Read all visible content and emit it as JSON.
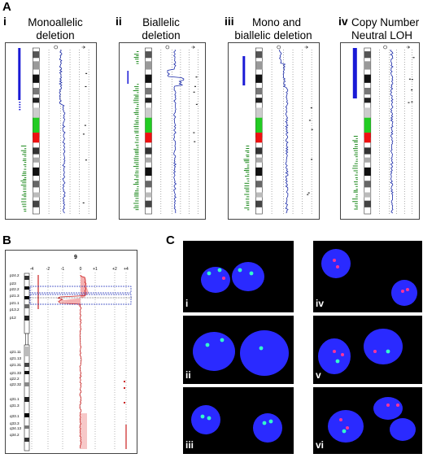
{
  "figure": {
    "panel_a": {
      "letter": "A",
      "subpanels": [
        {
          "num": "i",
          "title_lines": [
            "Monoallelic",
            "deletion"
          ]
        },
        {
          "num": "ii",
          "title_lines": [
            "Biallelic",
            "deletion"
          ]
        },
        {
          "num": "iii",
          "title_lines": [
            "Mono and",
            "biallelic deletion"
          ]
        },
        {
          "num": "iv",
          "title_lines": [
            "Copy Number",
            "Neutral LOH"
          ]
        }
      ]
    },
    "panel_b": {
      "letter": "B",
      "chromosome": "9",
      "axis_ticks": [
        "-4",
        "-2",
        "-1",
        "0",
        "+1",
        "+2",
        "+4"
      ],
      "bands": [
        "p24.2",
        "p23",
        "p22.2",
        "p21.3",
        "p21.1",
        "p13.2",
        "p12",
        "q21.11",
        "q21.13",
        "q21.31",
        "q21.33",
        "q22.2",
        "q22.32",
        "q31.1",
        "q31.3",
        "q33.1",
        "q33.3",
        "q34.13",
        "q34.2"
      ]
    },
    "panel_c": {
      "letter": "C",
      "images": [
        {
          "label": "i"
        },
        {
          "label": "iv"
        },
        {
          "label": "ii"
        },
        {
          "label": "v"
        },
        {
          "label": "iii"
        },
        {
          "label": "vi"
        }
      ]
    },
    "colors": {
      "blue_track": "#1a1ad6",
      "green_track": "#1e8a1e",
      "centromere_green": "#22cc22",
      "centromere_red": "#ee1111",
      "trace_blue": "#1a2aa8",
      "trace_red": "#cc2020",
      "fill_pink": "#f4b0b0",
      "cell_blue": "#2a2aff"
    }
  }
}
